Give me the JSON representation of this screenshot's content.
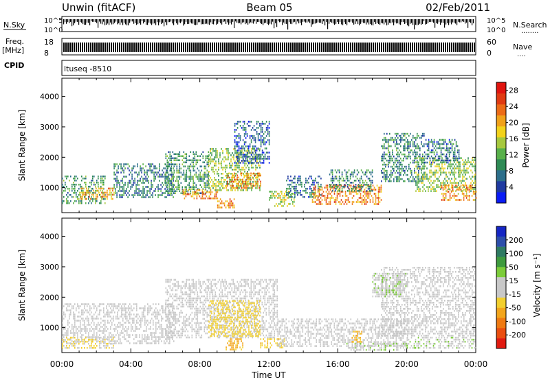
{
  "header": {
    "left": "Unwin (fitACF)",
    "center": "Beam 05",
    "right": "02/Feb/2011"
  },
  "noise_panel": {
    "left_label": "N.Sky",
    "right_label": "N.Search",
    "right_dots": "........",
    "ticks_left": [
      "10^5",
      "10^0"
    ],
    "ticks_right": [
      "10^5",
      "10^0"
    ]
  },
  "freq_panel": {
    "left_label_1": "Freq.",
    "left_label_2": "[MHz]",
    "ticks_left": [
      "18",
      "8"
    ],
    "ticks_right": [
      "60",
      "0"
    ],
    "right_label": "Nave",
    "right_dots": "...."
  },
  "cpid": {
    "label": "CPID",
    "text": "ltuseq -8510"
  },
  "time_axis": {
    "ticks": [
      "00:00",
      "04:00",
      "08:00",
      "12:00",
      "16:00",
      "20:00",
      "00:00"
    ],
    "label": "Time UT"
  },
  "panels": {
    "power": {
      "ylabel": "Slant Range [km]",
      "yticks": [
        "1000",
        "2000",
        "3000",
        "4000"
      ],
      "colorbar_label": "Power [dB]",
      "colorbar_ticks": [
        "4",
        "8",
        "12",
        "16",
        "20",
        "24",
        "28"
      ],
      "colorbar_colors": [
        "#0a1cf5",
        "#1f3aa0",
        "#2c6e8a",
        "#2e8a55",
        "#58b04a",
        "#a6c83e",
        "#f2d21b",
        "#f0a11a",
        "#ec6b16",
        "#e03a12",
        "#e0140f"
      ]
    },
    "velocity": {
      "ylabel": "Slant Range [km]",
      "yticks": [
        "1000",
        "2000",
        "3000",
        "4000"
      ],
      "colorbar_label": "Velocity [m s⁻¹]",
      "colorbar_ticks": [
        "200",
        "100",
        "50",
        "15",
        "-15",
        "-50",
        "-100",
        "-200"
      ],
      "colorbar_colors": [
        "#1526c4",
        "#2c4eaa",
        "#2e7a62",
        "#3e9a3e",
        "#7ccc3a",
        "#c8c8c8",
        "#c8c8c8",
        "#f2cf2e",
        "#f2a51c",
        "#ef7a12",
        "#ea4e10",
        "#e11a10"
      ]
    }
  },
  "chart_data": [
    {
      "type": "heatmap",
      "title": "Power",
      "xlabel": "Time UT",
      "ylabel": "Slant Range [km]",
      "xlim": [
        "00:00",
        "24:00"
      ],
      "ylim": [
        180,
        4600
      ],
      "colorbar": {
        "label": "Power [dB]",
        "range": [
          0,
          30
        ]
      },
      "regions": [
        {
          "t": [
            0.0,
            2.5
          ],
          "r": [
            500,
            1400
          ],
          "v": 10
        },
        {
          "t": [
            1.0,
            3.0
          ],
          "r": [
            600,
            1000
          ],
          "v": 20
        },
        {
          "t": [
            3.0,
            6.5
          ],
          "r": [
            700,
            1800
          ],
          "v": 8
        },
        {
          "t": [
            6.0,
            8.5
          ],
          "r": [
            800,
            2200
          ],
          "v": 10
        },
        {
          "t": [
            7.0,
            9.0
          ],
          "r": [
            650,
            950
          ],
          "v": 22
        },
        {
          "t": [
            8.5,
            11.5
          ],
          "r": [
            900,
            2300
          ],
          "v": 14
        },
        {
          "t": [
            9.5,
            11.5
          ],
          "r": [
            1000,
            1500
          ],
          "v": 22
        },
        {
          "t": [
            10.0,
            12.0
          ],
          "r": [
            1800,
            3200
          ],
          "v": 6
        },
        {
          "t": [
            9.0,
            10.0
          ],
          "r": [
            350,
            650
          ],
          "v": 21
        },
        {
          "t": [
            12.0,
            13.5
          ],
          "r": [
            400,
            900
          ],
          "v": 16
        },
        {
          "t": [
            13.0,
            15.0
          ],
          "r": [
            700,
            1400
          ],
          "v": 7
        },
        {
          "t": [
            14.5,
            18.5
          ],
          "r": [
            450,
            1100
          ],
          "v": 22
        },
        {
          "t": [
            15.5,
            18.0
          ],
          "r": [
            900,
            1600
          ],
          "v": 9
        },
        {
          "t": [
            18.5,
            21.0
          ],
          "r": [
            1200,
            2800
          ],
          "v": 9
        },
        {
          "t": [
            20.5,
            24.0
          ],
          "r": [
            900,
            2000
          ],
          "v": 14
        },
        {
          "t": [
            22.0,
            24.0
          ],
          "r": [
            600,
            1100
          ],
          "v": 21
        },
        {
          "t": [
            21.0,
            23.0
          ],
          "r": [
            1800,
            2600
          ],
          "v": 7
        }
      ]
    },
    {
      "type": "heatmap",
      "title": "Velocity",
      "xlabel": "Time UT",
      "ylabel": "Slant Range [km]",
      "xlim": [
        "00:00",
        "24:00"
      ],
      "ylim": [
        180,
        4600
      ],
      "colorbar": {
        "label": "Velocity [m s⁻¹]",
        "range": [
          -250,
          250
        ]
      },
      "regions": [
        {
          "t": [
            0.0,
            6.5
          ],
          "r": [
            500,
            1800
          ],
          "v": 0
        },
        {
          "t": [
            0.0,
            3.0
          ],
          "r": [
            300,
            700
          ],
          "v": -40
        },
        {
          "t": [
            6.0,
            12.5
          ],
          "r": [
            700,
            2600
          ],
          "v": 0
        },
        {
          "t": [
            8.5,
            11.5
          ],
          "r": [
            700,
            1900
          ],
          "v": -60
        },
        {
          "t": [
            9.5,
            10.5
          ],
          "r": [
            300,
            650
          ],
          "v": -90
        },
        {
          "t": [
            11.5,
            13.0
          ],
          "r": [
            350,
            650
          ],
          "v": -70
        },
        {
          "t": [
            12.5,
            20.0
          ],
          "r": [
            400,
            1300
          ],
          "v": 0
        },
        {
          "t": [
            16.5,
            20.0
          ],
          "r": [
            250,
            500
          ],
          "v": 35
        },
        {
          "t": [
            16.8,
            17.4
          ],
          "r": [
            500,
            900
          ],
          "v": -90
        },
        {
          "t": [
            18.5,
            24.0
          ],
          "r": [
            700,
            3000
          ],
          "v": 0
        },
        {
          "t": [
            18.0,
            20.0
          ],
          "r": [
            2000,
            2800
          ],
          "v": 30
        },
        {
          "t": [
            20.0,
            24.0
          ],
          "r": [
            300,
            700
          ],
          "v": 30
        }
      ]
    }
  ]
}
